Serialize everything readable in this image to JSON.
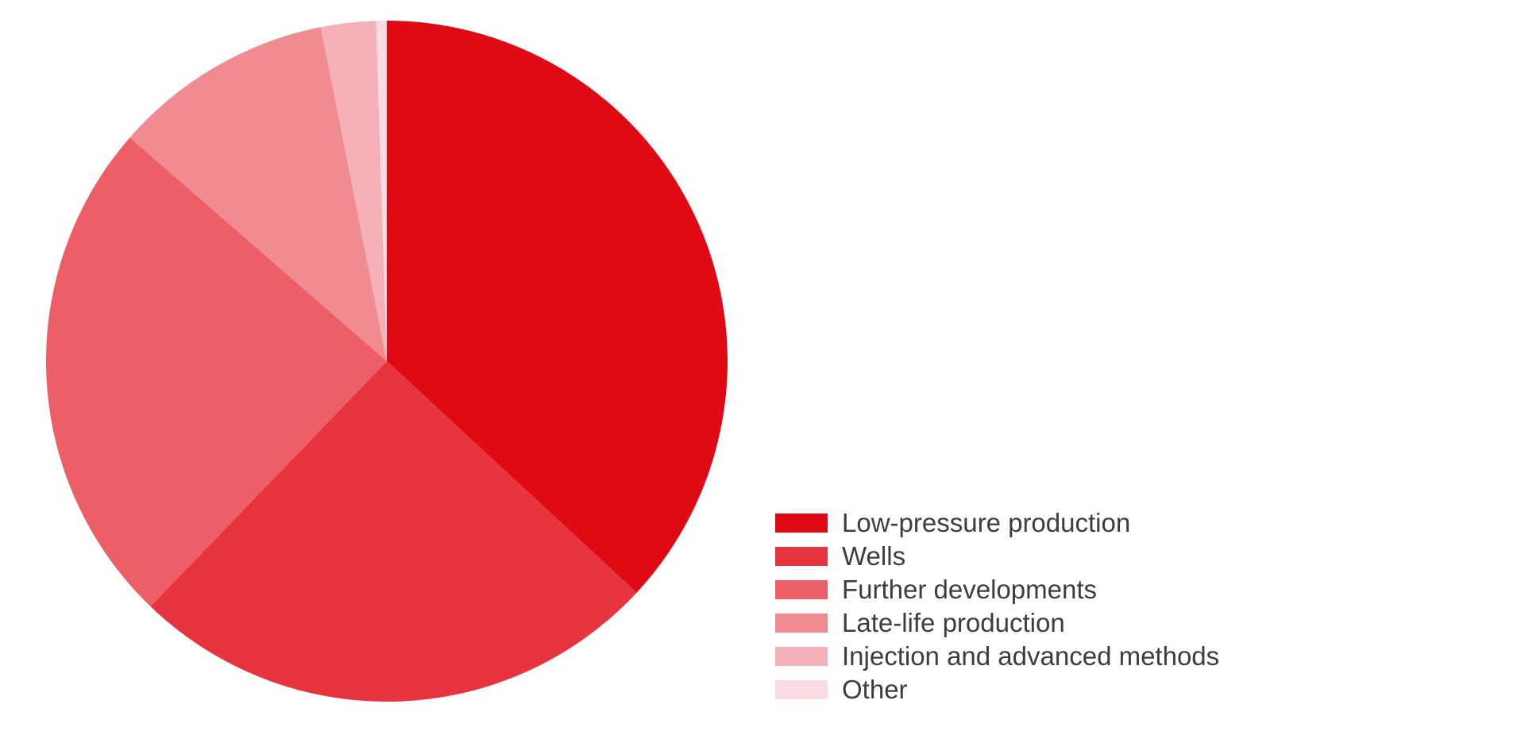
{
  "chart_data": {
    "type": "pie",
    "title": "",
    "unit": "%",
    "direction": "clockwise",
    "start_angle_deg": 0,
    "legend_position": "right-bottom",
    "background_color": "#ffffff",
    "text_color": "#3d3d3d",
    "slices": [
      {
        "label": "Low-pressure production",
        "value": 36.9,
        "color": "#e00a14"
      },
      {
        "label": "Wells",
        "value": 25.3,
        "color": "#e7343f"
      },
      {
        "label": "Further developments",
        "value": 24.2,
        "color": "#ed5e67"
      },
      {
        "label": "Late-life production",
        "value": 10.5,
        "color": "#f18b92"
      },
      {
        "label": "Injection and advanced methods",
        "value": 2.6,
        "color": "#f6b1b8"
      },
      {
        "label": "Other",
        "value": 0.5,
        "color": "#fadbe1"
      }
    ]
  }
}
